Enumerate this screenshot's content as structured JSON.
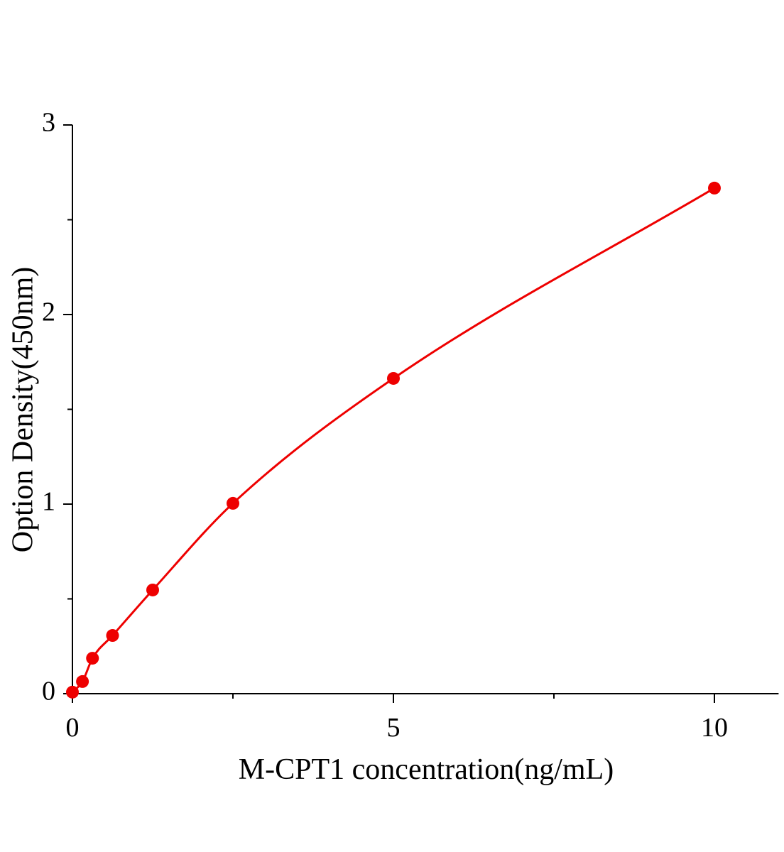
{
  "chart_data": {
    "type": "scatter",
    "x_label": "M-CPT1 concentration(ng/mL)",
    "y_label": "Option Density(450nm)",
    "series": [
      {
        "color": "#ee0000",
        "x": [
          0,
          0.156,
          0.3125,
          0.625,
          1.25,
          2.5,
          5,
          10
        ],
        "values": [
          0.008,
          0.064,
          0.187,
          0.307,
          0.547,
          1.004,
          1.663,
          2.667
        ]
      }
    ],
    "fit_line": true,
    "xlim": [
      0,
      11
    ],
    "ylim": [
      0,
      3
    ],
    "xticks": [
      0,
      5,
      10
    ],
    "yticks": [
      0,
      1,
      2,
      3
    ],
    "x_minor_ticks": [
      2.5,
      7.5
    ],
    "y_minor_ticks": [
      0.5,
      1.5,
      2.5
    ],
    "grid": false
  }
}
